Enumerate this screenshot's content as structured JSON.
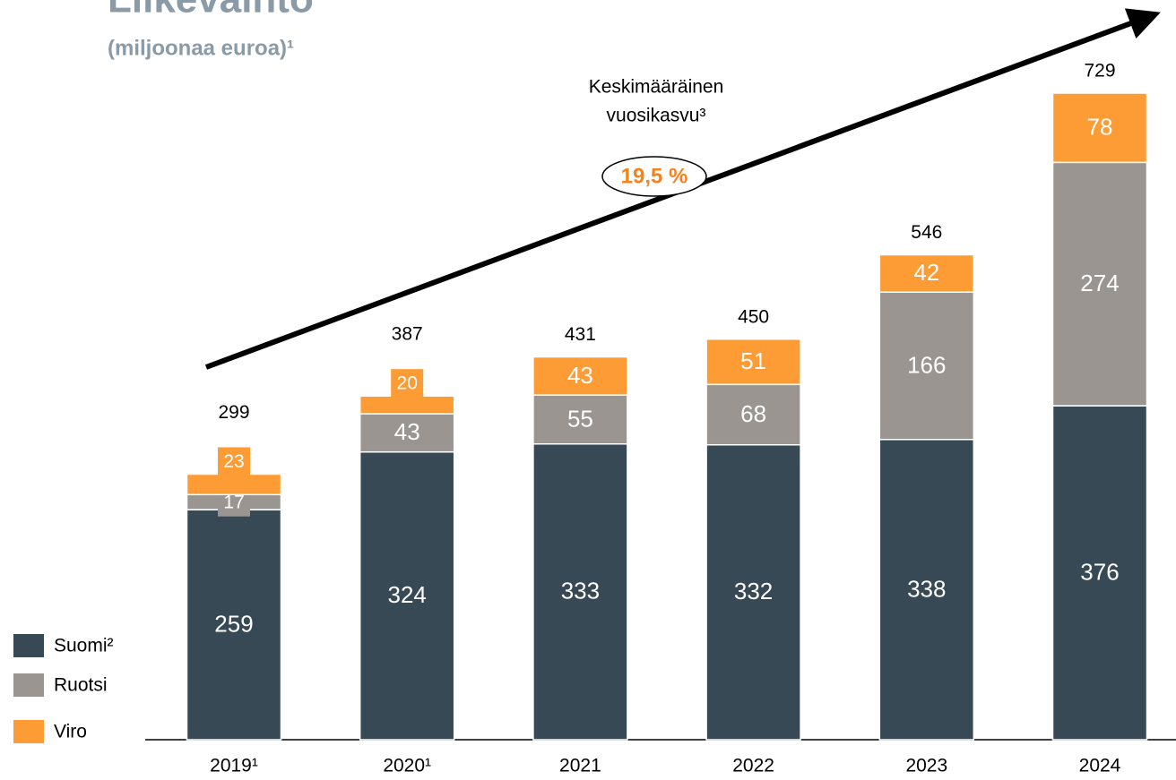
{
  "chart_data": {
    "type": "stacked_bar",
    "title": "Liikevaihto",
    "subtitle": "(miljoonaa euroa)¹",
    "annotation": [
      "Keskimääräinen",
      "vuosikasvu³"
    ],
    "growth_label": "19,5 %",
    "categories": [
      "2019¹",
      "2020¹",
      "2021",
      "2022",
      "2023",
      "2024"
    ],
    "series": [
      {
        "name": "Suomi²",
        "color": "#364954",
        "values": [
          259,
          324,
          333,
          332,
          338,
          376
        ]
      },
      {
        "name": "Ruotsi",
        "color": "#9a9591",
        "values": [
          17,
          43,
          55,
          68,
          166,
          274
        ]
      },
      {
        "name": "Viro",
        "color": "#fd9b35",
        "values": [
          23,
          20,
          43,
          51,
          42,
          78
        ]
      }
    ],
    "totals": [
      299,
      387,
      431,
      450,
      546,
      729
    ]
  }
}
